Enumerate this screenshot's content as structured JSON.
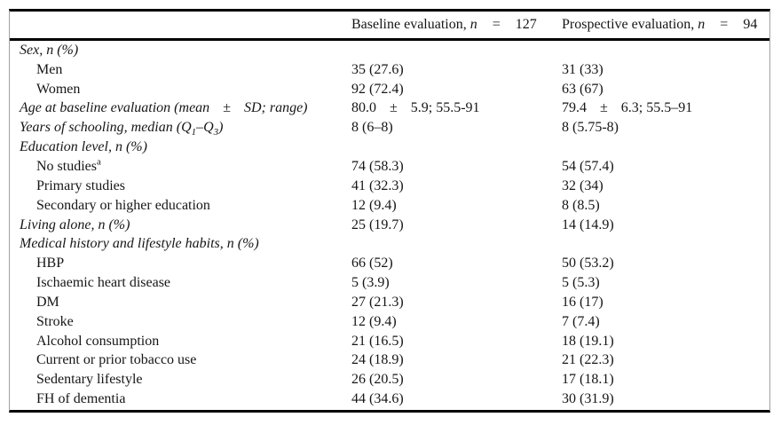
{
  "page": {
    "background": "#ffffff",
    "text_color": "#161616",
    "rule_color": "#000000",
    "side_rule_color": "#a0a0a0"
  },
  "table": {
    "header": {
      "columns": [
        {
          "name": "baseline-evaluation-header",
          "segments": [
            {
              "t": "Baseline evaluation, "
            },
            {
              "i": "n"
            },
            {
              "gap": "="
            },
            {
              "t": "127"
            }
          ]
        },
        {
          "name": "prospective-evaluation-header",
          "segments": [
            {
              "t": "Prospective evaluation, "
            },
            {
              "i": "n"
            },
            {
              "gap": "="
            },
            {
              "t": "94"
            }
          ]
        }
      ]
    },
    "rows": [
      {
        "style": "group",
        "label": [
          {
            "t": "Sex, n (%)"
          }
        ],
        "baseline": "",
        "prospective": ""
      },
      {
        "style": "item",
        "label": [
          {
            "t": "Men"
          }
        ],
        "baseline": "35 (27.6)",
        "prospective": "31 (33)"
      },
      {
        "style": "item",
        "label": [
          {
            "t": "Women"
          }
        ],
        "baseline": "92 (72.4)",
        "prospective": "63 (67)"
      },
      {
        "style": "group",
        "label": [
          {
            "t": "Age at baseline evaluation (mean"
          },
          {
            "gap": "±"
          },
          {
            "t": "SD; range)"
          }
        ],
        "baseline": [
          {
            "t": "80.0"
          },
          {
            "gap": "±"
          },
          {
            "t": "5.9; 55.5-91"
          }
        ],
        "prospective": [
          {
            "t": "79.4"
          },
          {
            "gap": "±"
          },
          {
            "t": "6.3; 55.5–91"
          }
        ]
      },
      {
        "style": "group",
        "label": [
          {
            "t": "Years of schooling, median (Q"
          },
          {
            "sub": "1"
          },
          {
            "t": "–Q"
          },
          {
            "sub": "3"
          },
          {
            "t": ")"
          }
        ],
        "baseline": "8 (6–8)",
        "prospective": "8 (5.75-8)"
      },
      {
        "style": "group",
        "label": [
          {
            "t": "Education level, n (%)"
          }
        ],
        "baseline": "",
        "prospective": ""
      },
      {
        "style": "item",
        "label": [
          {
            "t": "No studies"
          },
          {
            "sup": "a"
          }
        ],
        "baseline": "74 (58.3)",
        "prospective": "54 (57.4)"
      },
      {
        "style": "item",
        "label": [
          {
            "t": "Primary studies"
          }
        ],
        "baseline": "41 (32.3)",
        "prospective": "32 (34)"
      },
      {
        "style": "item",
        "label": [
          {
            "t": "Secondary or higher education"
          }
        ],
        "baseline": "12 (9.4)",
        "prospective": "8 (8.5)"
      },
      {
        "style": "group",
        "label": [
          {
            "t": "Living alone, n (%)"
          }
        ],
        "baseline": "25 (19.7)",
        "prospective": "14 (14.9)"
      },
      {
        "style": "group",
        "label": [
          {
            "t": "Medical history and lifestyle habits, n (%)"
          }
        ],
        "baseline": "",
        "prospective": ""
      },
      {
        "style": "item",
        "label": [
          {
            "t": "HBP"
          }
        ],
        "baseline": "66 (52)",
        "prospective": "50 (53.2)"
      },
      {
        "style": "item",
        "label": [
          {
            "t": "Ischaemic heart disease"
          }
        ],
        "baseline": "5 (3.9)",
        "prospective": "5 (5.3)"
      },
      {
        "style": "item",
        "label": [
          {
            "t": "DM"
          }
        ],
        "baseline": "27 (21.3)",
        "prospective": "16 (17)"
      },
      {
        "style": "item",
        "label": [
          {
            "t": "Stroke"
          }
        ],
        "baseline": "12 (9.4)",
        "prospective": "7 (7.4)"
      },
      {
        "style": "item",
        "label": [
          {
            "t": "Alcohol consumption"
          }
        ],
        "baseline": "21 (16.5)",
        "prospective": "18 (19.1)"
      },
      {
        "style": "item",
        "label": [
          {
            "t": "Current or prior tobacco use"
          }
        ],
        "baseline": "24 (18.9)",
        "prospective": "21 (22.3)"
      },
      {
        "style": "item",
        "label": [
          {
            "t": "Sedentary lifestyle"
          }
        ],
        "baseline": "26 (20.5)",
        "prospective": "17 (18.1)"
      },
      {
        "style": "item",
        "label": [
          {
            "t": "FH of dementia"
          }
        ],
        "baseline": "44 (34.6)",
        "prospective": "30 (31.9)"
      }
    ]
  }
}
